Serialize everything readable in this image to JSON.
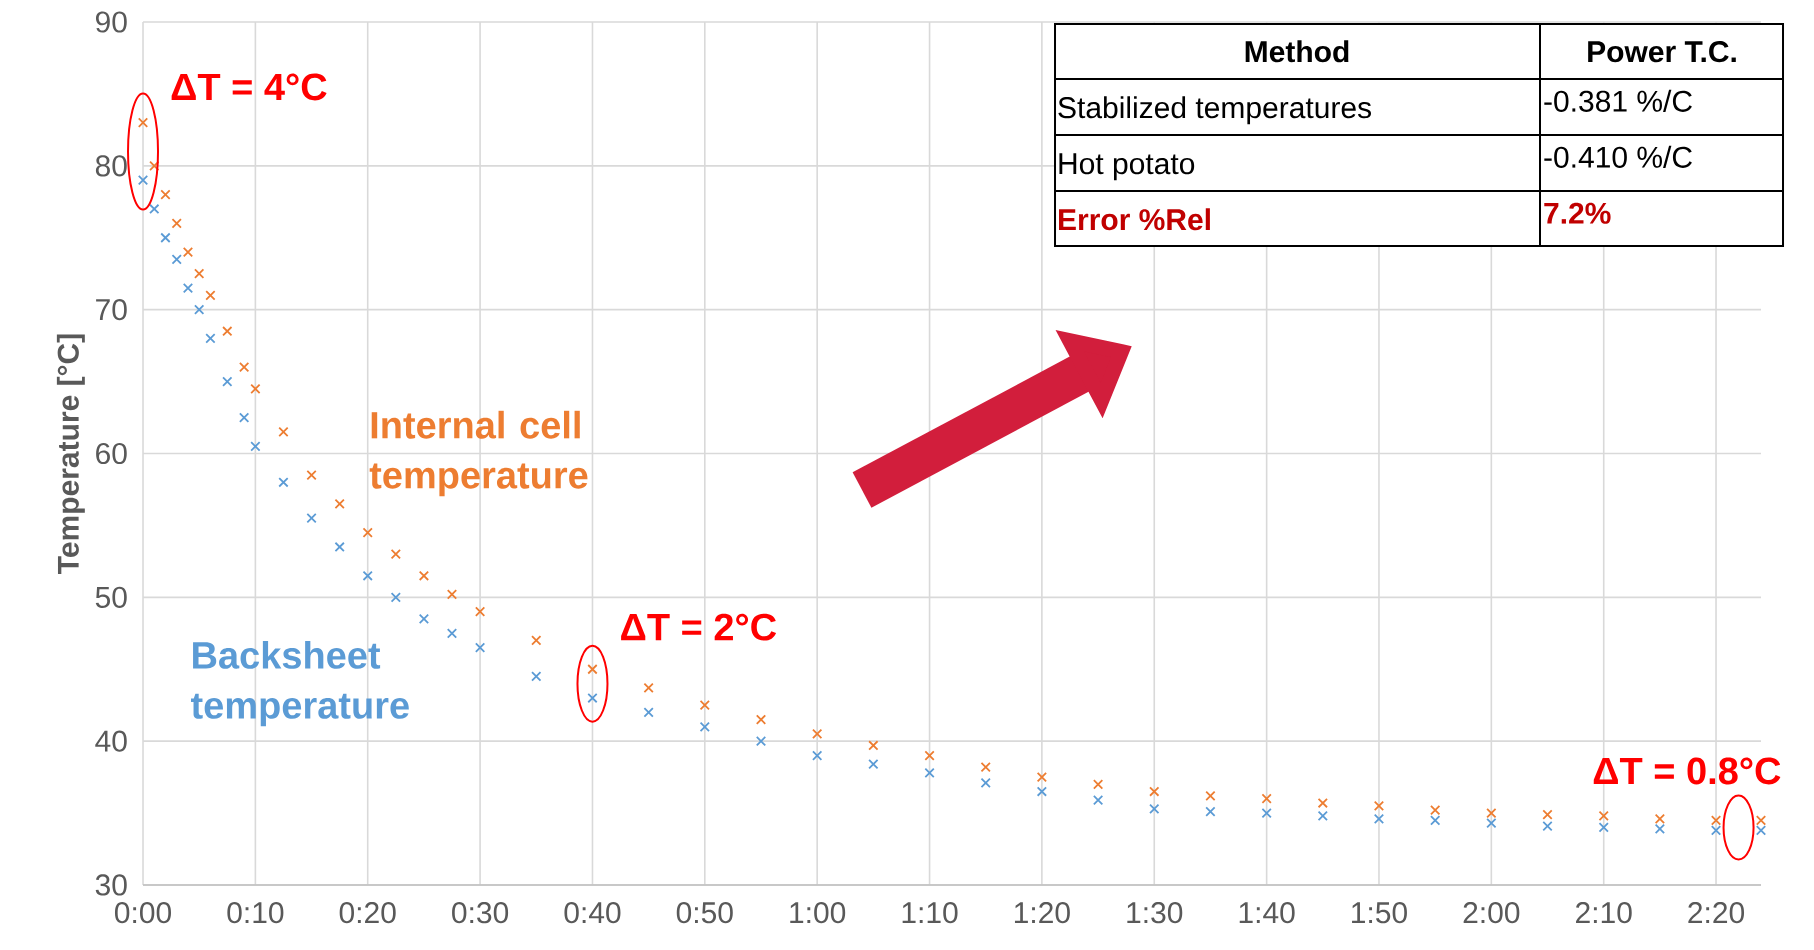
{
  "chart_data": {
    "type": "scatter",
    "ylabel": "Temperature [°C]",
    "marker": "cross",
    "grid": true,
    "xlim": [
      0,
      2.4
    ],
    "ylim": [
      30,
      90
    ],
    "xticks": [
      {
        "value": 0,
        "label": "0:00"
      },
      {
        "value": 0.1667,
        "label": "0:10"
      },
      {
        "value": 0.3333,
        "label": "0:20"
      },
      {
        "value": 0.5,
        "label": "0:30"
      },
      {
        "value": 0.6667,
        "label": "0:40"
      },
      {
        "value": 0.8333,
        "label": "0:50"
      },
      {
        "value": 1,
        "label": "1:00"
      },
      {
        "value": 1.1667,
        "label": "1:10"
      },
      {
        "value": 1.3333,
        "label": "1:20"
      },
      {
        "value": 1.5,
        "label": "1:30"
      },
      {
        "value": 1.6667,
        "label": "1:40"
      },
      {
        "value": 1.8333,
        "label": "1:50"
      },
      {
        "value": 2,
        "label": "2:00"
      },
      {
        "value": 2.1667,
        "label": "2:10"
      },
      {
        "value": 2.3333,
        "label": "2:20"
      }
    ],
    "yticks": [
      30,
      40,
      50,
      60,
      70,
      80,
      90
    ],
    "x": [
      0,
      0.0167,
      0.0333,
      0.05,
      0.0667,
      0.0833,
      0.1,
      0.125,
      0.15,
      0.1667,
      0.2083,
      0.25,
      0.2917,
      0.3333,
      0.375,
      0.4167,
      0.4583,
      0.5,
      0.5833,
      0.6667,
      0.75,
      0.8333,
      0.9167,
      1,
      1.0833,
      1.1667,
      1.25,
      1.3333,
      1.4167,
      1.5,
      1.5833,
      1.6667,
      1.75,
      1.8333,
      1.9167,
      2,
      2.0833,
      2.1667,
      2.25,
      2.3333,
      2.4
    ],
    "series": [
      {
        "name": "Internal cell temperature",
        "color": "#ed7d31",
        "values": [
          83,
          80,
          78,
          76,
          74,
          72.5,
          71,
          68.5,
          66,
          64.5,
          61.5,
          58.5,
          56.5,
          54.5,
          53,
          51.5,
          50.2,
          49,
          47,
          45,
          43.7,
          42.5,
          41.5,
          40.5,
          39.7,
          39,
          38.2,
          37.5,
          37,
          36.5,
          36.2,
          36,
          35.7,
          35.5,
          35.2,
          35,
          34.9,
          34.8,
          34.6,
          34.5,
          34.5
        ]
      },
      {
        "name": "Backsheet temperature",
        "color": "#5b9bd5",
        "values": [
          79,
          77,
          75,
          73.5,
          71.5,
          70,
          68,
          65,
          62.5,
          60.5,
          58,
          55.5,
          53.5,
          51.5,
          50,
          48.5,
          47.5,
          46.5,
          44.5,
          43,
          42,
          41,
          40,
          39,
          38.4,
          37.8,
          37.1,
          36.5,
          35.9,
          35.3,
          35.1,
          35,
          34.8,
          34.6,
          34.5,
          34.3,
          34.1,
          34,
          33.9,
          33.8,
          33.8
        ]
      }
    ],
    "annotations": [
      "ΔT = 4°C",
      "ΔT = 2°C",
      "ΔT = 0.8°C",
      "Method",
      "Power T.C.",
      "Stabilized temperatures",
      "-0.381 %/C",
      "Hot potato",
      "-0.410 %/C",
      "Error %Rel",
      "7.2%"
    ]
  }
}
